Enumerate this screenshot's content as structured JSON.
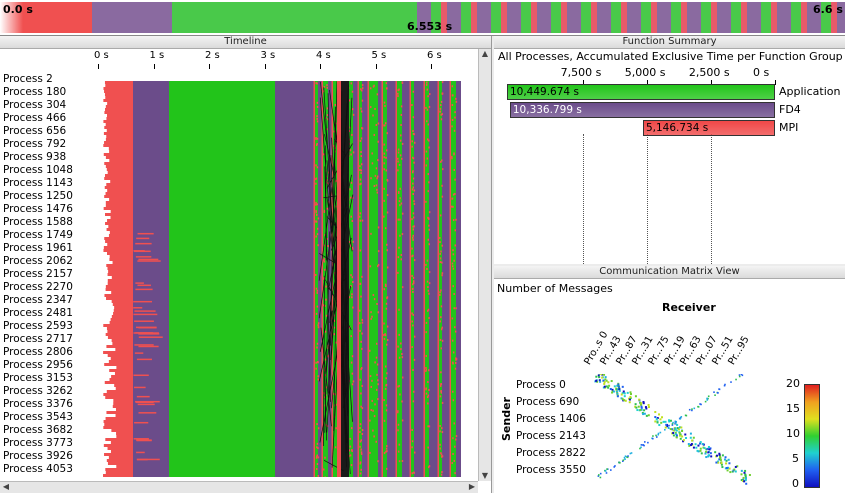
{
  "overview": {
    "start_time": "0.0 s",
    "cursor_time": "6.553 s",
    "end_time": "6.6 s"
  },
  "timeline": {
    "title": "Timeline",
    "ticks": [
      "0 s",
      "1 s",
      "2 s",
      "3 s",
      "4 s",
      "5 s",
      "6 s"
    ],
    "processes": [
      "Process 2",
      "Process 180",
      "Process 304",
      "Process 466",
      "Process 656",
      "Process 792",
      "Process 938",
      "Process 1048",
      "Process 1143",
      "Process 1250",
      "Process 1476",
      "Process 1588",
      "Process 1749",
      "Process 1961",
      "Process 2062",
      "Process 2157",
      "Process 2270",
      "Process 2347",
      "Process 2481",
      "Process 2593",
      "Process 2717",
      "Process 2806",
      "Process 2956",
      "Process 3153",
      "Process 3262",
      "Process 3376",
      "Process 3543",
      "Process 3682",
      "Process 3773",
      "Process 3926",
      "Process 4053"
    ]
  },
  "function_summary": {
    "title": "Function Summary",
    "subtitle": "All Processes, Accumulated Exclusive Time per Function Group",
    "axis_ticks": [
      "7,500 s",
      "5,000 s",
      "2,500 s",
      "0 s"
    ],
    "groups": [
      {
        "name": "Application",
        "value_label": "10,449.674 s",
        "value": 10449.674,
        "color": "#22c41a"
      },
      {
        "name": "FD4",
        "value_label": "10,336.799 s",
        "value": 10336.799,
        "color": "#6b4c8a"
      },
      {
        "name": "MPI",
        "value_label": "5,146.734 s",
        "value": 5146.734,
        "color": "#f04848"
      }
    ]
  },
  "comm_matrix": {
    "title": "Communication Matrix View",
    "metric": "Number of Messages",
    "receiver_label": "Receiver",
    "sender_label": "Sender",
    "receivers": [
      "Pro..s 0",
      "Pr...43",
      "Pr...87",
      "Pr...31",
      "Pr...75",
      "Pr...19",
      "Pr...63",
      "Pr...07",
      "Pr...51",
      "Pr...95"
    ],
    "senders": [
      "Process 0",
      "Process 690",
      "Process 1406",
      "Process 2143",
      "Process 2822",
      "Process 3550"
    ],
    "scale_ticks": [
      "20",
      "15",
      "10",
      "5",
      "0"
    ]
  }
}
